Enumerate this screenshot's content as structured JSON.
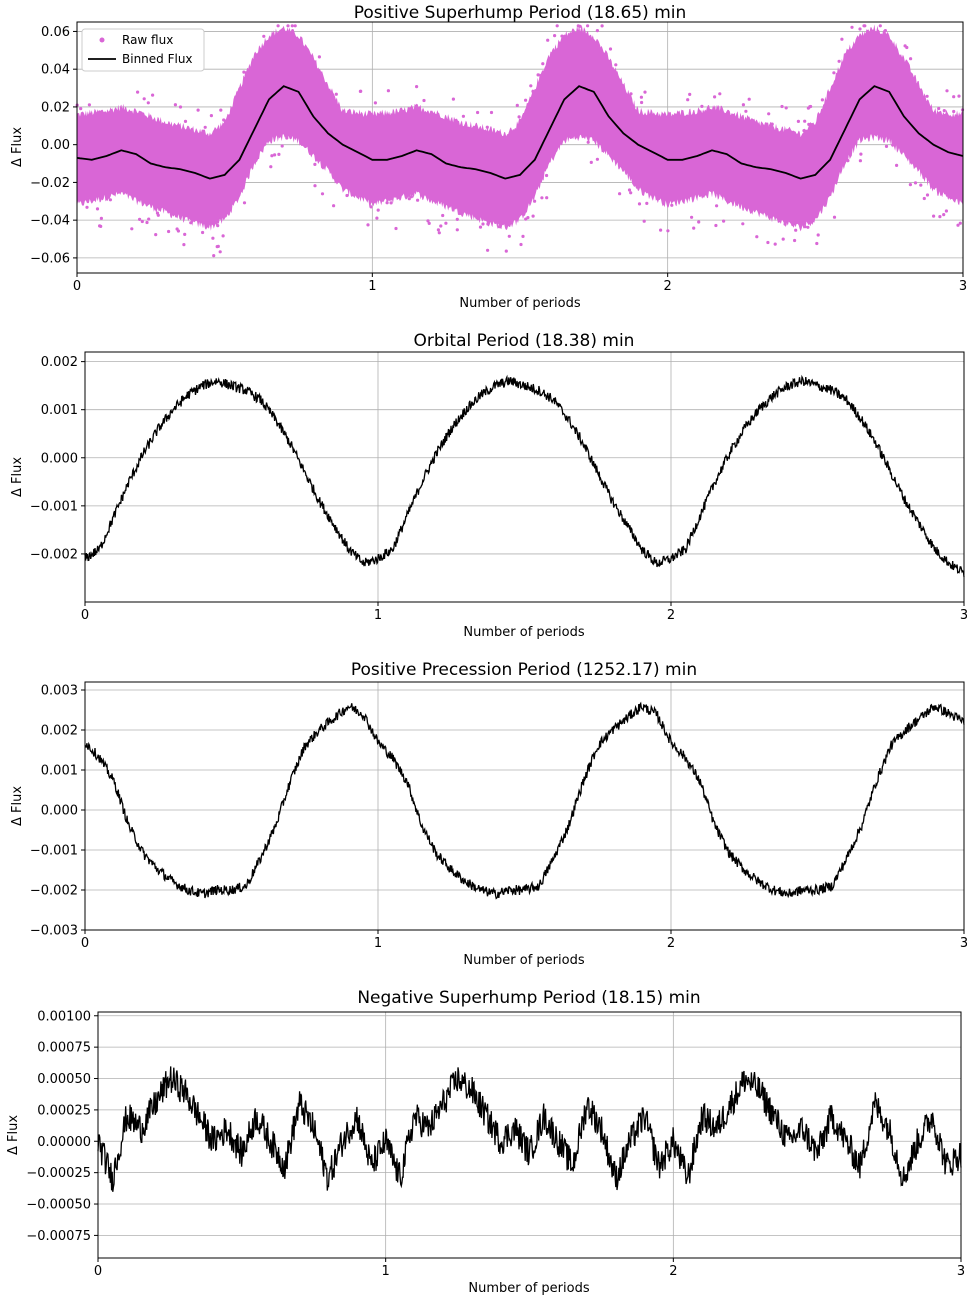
{
  "chart_data": [
    {
      "type": "scatter",
      "title": "Positive Superhump Period (18.65) min",
      "xlabel": "Number of periods",
      "ylabel": "Δ Flux",
      "xlim": [
        0,
        3
      ],
      "ylim": [
        -0.068,
        0.065
      ],
      "xticks": [
        0,
        1,
        2,
        3
      ],
      "xtick_labels": [
        "0",
        "1",
        "2",
        "3"
      ],
      "yticks": [
        -0.06,
        -0.04,
        -0.02,
        0.0,
        0.02,
        0.04,
        0.06
      ],
      "ytick_labels": [
        "−0.06",
        "−0.04",
        "−0.02",
        "0.00",
        "0.02",
        "0.04",
        "0.06"
      ],
      "grid": true,
      "legend_position": "top-left",
      "series": [
        {
          "name": "Raw flux",
          "kind": "scatter",
          "color": "#d966d6",
          "envelope_x": [
            0.0,
            0.1,
            0.15,
            0.2,
            0.3,
            0.4,
            0.45,
            0.5,
            0.55,
            0.6,
            0.65,
            0.7,
            0.75,
            0.8,
            0.85,
            0.9,
            1.0
          ],
          "envelope_lower": [
            -0.032,
            -0.028,
            -0.026,
            -0.03,
            -0.036,
            -0.042,
            -0.044,
            -0.04,
            -0.028,
            -0.01,
            0.002,
            0.004,
            0.002,
            -0.006,
            -0.014,
            -0.024,
            -0.032
          ],
          "envelope_upper": [
            0.016,
            0.018,
            0.02,
            0.018,
            0.012,
            0.008,
            0.006,
            0.012,
            0.03,
            0.048,
            0.058,
            0.062,
            0.058,
            0.046,
            0.032,
            0.018,
            0.016
          ]
        },
        {
          "name": "Binned Flux",
          "kind": "line",
          "color": "#000000",
          "x": [
            0.0,
            0.05,
            0.1,
            0.15,
            0.2,
            0.25,
            0.3,
            0.35,
            0.4,
            0.45,
            0.5,
            0.55,
            0.6,
            0.65,
            0.7,
            0.75,
            0.8,
            0.85,
            0.9,
            0.95,
            1.0,
            1.05,
            1.1,
            1.15,
            1.2,
            1.25,
            1.3,
            1.35,
            1.4,
            1.45,
            1.5,
            1.55,
            1.6,
            1.65,
            1.7,
            1.75,
            1.8,
            1.85,
            1.9,
            1.95,
            2.0,
            2.05,
            2.1,
            2.15,
            2.2,
            2.25,
            2.3,
            2.35,
            2.4,
            2.45,
            2.5,
            2.55,
            2.6,
            2.65,
            2.7,
            2.75,
            2.8,
            2.85,
            2.9,
            2.95,
            3.0
          ],
          "y": [
            -0.007,
            -0.008,
            -0.006,
            -0.003,
            -0.005,
            -0.01,
            -0.012,
            -0.013,
            -0.015,
            -0.018,
            -0.016,
            -0.008,
            0.008,
            0.024,
            0.031,
            0.028,
            0.015,
            0.006,
            0.0,
            -0.004,
            -0.008,
            -0.008,
            -0.006,
            -0.003,
            -0.005,
            -0.01,
            -0.012,
            -0.013,
            -0.015,
            -0.018,
            -0.016,
            -0.008,
            0.008,
            0.024,
            0.031,
            0.028,
            0.015,
            0.006,
            0.0,
            -0.004,
            -0.008,
            -0.008,
            -0.006,
            -0.003,
            -0.005,
            -0.01,
            -0.012,
            -0.013,
            -0.015,
            -0.018,
            -0.016,
            -0.008,
            0.008,
            0.024,
            0.031,
            0.028,
            0.015,
            0.006,
            0.0,
            -0.004,
            -0.006
          ]
        }
      ]
    },
    {
      "type": "line",
      "title": "Orbital Period (18.38) min",
      "xlabel": "Number of periods",
      "ylabel": "Δ Flux",
      "xlim": [
        0,
        3
      ],
      "ylim": [
        -0.003,
        0.0022
      ],
      "xticks": [
        0,
        1,
        2,
        3
      ],
      "xtick_labels": [
        "0",
        "1",
        "2",
        "3"
      ],
      "yticks": [
        -0.002,
        -0.001,
        0.0,
        0.001,
        0.002
      ],
      "ytick_labels": [
        "−0.002",
        "−0.001",
        "0.000",
        "0.001",
        "0.002"
      ],
      "grid": true,
      "series": [
        {
          "kind": "line",
          "color": "#000000",
          "x": [
            0.0,
            0.05,
            0.1,
            0.15,
            0.2,
            0.25,
            0.3,
            0.35,
            0.4,
            0.45,
            0.5,
            0.55,
            0.6,
            0.65,
            0.7,
            0.75,
            0.8,
            0.85,
            0.9,
            0.95,
            1.0,
            1.05,
            1.1,
            1.15,
            1.2,
            1.25,
            1.3,
            1.35,
            1.4,
            1.45,
            1.5,
            1.55,
            1.6,
            1.65,
            1.7,
            1.75,
            1.8,
            1.85,
            1.9,
            1.95,
            2.0,
            2.05,
            2.1,
            2.15,
            2.2,
            2.25,
            2.3,
            2.35,
            2.4,
            2.45,
            2.5,
            2.55,
            2.6,
            2.65,
            2.7,
            2.75,
            2.8,
            2.85,
            2.9,
            2.95,
            3.0
          ],
          "y": [
            -0.0021,
            -0.0019,
            -0.0012,
            -0.0005,
            0.0001,
            0.0006,
            0.001,
            0.0013,
            0.0015,
            0.0016,
            0.0015,
            0.0014,
            0.0012,
            0.0008,
            0.0003,
            -0.0003,
            -0.0009,
            -0.0014,
            -0.0019,
            -0.0022,
            -0.0021,
            -0.0019,
            -0.0012,
            -0.0005,
            0.0001,
            0.0006,
            0.001,
            0.0013,
            0.0015,
            0.0016,
            0.0015,
            0.0014,
            0.0012,
            0.0008,
            0.0003,
            -0.0003,
            -0.0009,
            -0.0014,
            -0.0019,
            -0.0022,
            -0.0021,
            -0.0019,
            -0.0012,
            -0.0005,
            0.0001,
            0.0006,
            0.001,
            0.0013,
            0.0015,
            0.0016,
            0.0015,
            0.0014,
            0.0012,
            0.0008,
            0.0003,
            -0.0003,
            -0.0009,
            -0.0014,
            -0.0019,
            -0.0022,
            -0.0024
          ]
        }
      ]
    },
    {
      "type": "line",
      "title": "Positive Precession Period (1252.17) min",
      "xlabel": "Number of periods",
      "ylabel": "Δ Flux",
      "xlim": [
        0,
        3
      ],
      "ylim": [
        -0.003,
        0.0032
      ],
      "xticks": [
        0,
        1,
        2,
        3
      ],
      "xtick_labels": [
        "0",
        "1",
        "2",
        "3"
      ],
      "yticks": [
        -0.003,
        -0.002,
        -0.001,
        0.0,
        0.001,
        0.002,
        0.003
      ],
      "ytick_labels": [
        "−0.003",
        "−0.002",
        "−0.001",
        "0.000",
        "0.001",
        "0.002",
        "0.003"
      ],
      "grid": true,
      "series": [
        {
          "kind": "line",
          "color": "#000000",
          "x": [
            0.0,
            0.05,
            0.1,
            0.15,
            0.2,
            0.25,
            0.3,
            0.35,
            0.4,
            0.45,
            0.5,
            0.55,
            0.6,
            0.65,
            0.7,
            0.75,
            0.8,
            0.85,
            0.9,
            0.95,
            1.0,
            1.05,
            1.1,
            1.15,
            1.2,
            1.25,
            1.3,
            1.35,
            1.4,
            1.45,
            1.5,
            1.55,
            1.6,
            1.65,
            1.7,
            1.75,
            1.8,
            1.85,
            1.9,
            1.95,
            2.0,
            2.05,
            2.1,
            2.15,
            2.2,
            2.25,
            2.3,
            2.35,
            2.4,
            2.45,
            2.5,
            2.55,
            2.6,
            2.65,
            2.7,
            2.75,
            2.8,
            2.85,
            2.9,
            2.95,
            3.0
          ],
          "y": [
            0.0017,
            0.0013,
            0.0007,
            -0.0004,
            -0.0011,
            -0.0015,
            -0.0018,
            -0.002,
            -0.0021,
            -0.002,
            -0.002,
            -0.0019,
            -0.0012,
            -0.0004,
            0.0007,
            0.0016,
            0.002,
            0.0023,
            0.0026,
            0.0024,
            0.0017,
            0.0013,
            0.0007,
            -0.0004,
            -0.0011,
            -0.0015,
            -0.0018,
            -0.002,
            -0.0021,
            -0.002,
            -0.002,
            -0.0019,
            -0.0012,
            -0.0004,
            0.0007,
            0.0016,
            0.002,
            0.0023,
            0.0026,
            0.0024,
            0.0017,
            0.0013,
            0.0007,
            -0.0004,
            -0.0011,
            -0.0015,
            -0.0018,
            -0.002,
            -0.0021,
            -0.002,
            -0.002,
            -0.0019,
            -0.0012,
            -0.0004,
            0.0007,
            0.0016,
            0.002,
            0.0023,
            0.0026,
            0.0024,
            0.0022
          ]
        }
      ]
    },
    {
      "type": "line",
      "title": "Negative Superhump Period (18.15) min",
      "xlabel": "Number of periods",
      "ylabel": "Δ Flux",
      "xlim": [
        0,
        3
      ],
      "ylim": [
        -0.00093,
        0.00103
      ],
      "xticks": [
        0,
        1,
        2,
        3
      ],
      "xtick_labels": [
        "0",
        "1",
        "2",
        "3"
      ],
      "yticks": [
        -0.00075,
        -0.0005,
        -0.00025,
        0.0,
        0.00025,
        0.0005,
        0.00075,
        0.001
      ],
      "ytick_labels": [
        "−0.00075",
        "−0.00050",
        "−0.00025",
        "0.00000",
        "0.00025",
        "0.00050",
        "0.00075",
        "0.00100"
      ],
      "grid": true,
      "series": [
        {
          "kind": "line",
          "color": "#000000",
          "x": [
            0.0,
            0.05,
            0.1,
            0.15,
            0.2,
            0.25,
            0.3,
            0.35,
            0.4,
            0.45,
            0.5,
            0.55,
            0.6,
            0.65,
            0.7,
            0.75,
            0.8,
            0.85,
            0.9,
            0.95,
            1.0,
            1.05,
            1.1,
            1.15,
            1.2,
            1.25,
            1.3,
            1.35,
            1.4,
            1.45,
            1.5,
            1.55,
            1.6,
            1.65,
            1.7,
            1.75,
            1.8,
            1.85,
            1.9,
            1.95,
            2.0,
            2.05,
            2.1,
            2.15,
            2.2,
            2.25,
            2.3,
            2.35,
            2.4,
            2.45,
            2.5,
            2.55,
            2.6,
            2.65,
            2.7,
            2.75,
            2.8,
            2.85,
            2.9,
            2.95,
            3.0
          ],
          "y": [
            0.0,
            -0.0003,
            0.0002,
            0.0001,
            0.0003,
            0.0005,
            0.0004,
            0.0002,
            0.0,
            0.0001,
            -0.0001,
            0.0002,
            0.0,
            -0.0002,
            0.0003,
            0.0001,
            -0.0003,
            0.0,
            0.0002,
            -0.0002,
            0.0,
            -0.0003,
            0.0002,
            0.0001,
            0.0003,
            0.0005,
            0.0004,
            0.0002,
            0.0,
            0.0001,
            -0.0001,
            0.0002,
            0.0,
            -0.0002,
            0.0003,
            0.0001,
            -0.0003,
            0.0,
            0.0002,
            -0.0002,
            0.0,
            -0.0003,
            0.0002,
            0.0001,
            0.0003,
            0.0005,
            0.0004,
            0.0002,
            0.0,
            0.0001,
            -0.0001,
            0.0002,
            0.0,
            -0.0002,
            0.0003,
            0.0001,
            -0.0003,
            0.0,
            0.0002,
            -0.0002,
            -0.0001
          ]
        }
      ]
    }
  ]
}
